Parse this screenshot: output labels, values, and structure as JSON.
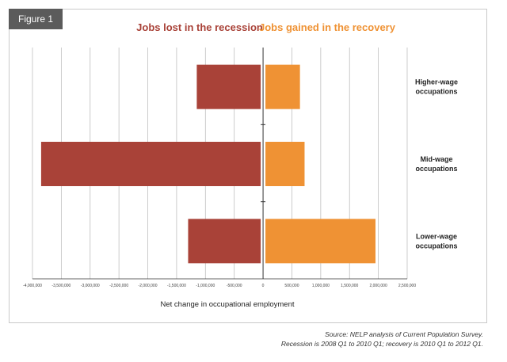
{
  "figure_tab": "Figure 1",
  "colors": {
    "loss": "#a94238",
    "gain": "#ef9234",
    "grid": "#bfbfbf",
    "axis": "#333333"
  },
  "chart_data": {
    "type": "bar",
    "orientation": "horizontal",
    "title": "",
    "categories": [
      "Higher-wage occupations",
      "Mid-wage occupations",
      "Lower-wage occupations"
    ],
    "category_lines": [
      [
        "Higher-wage",
        "occupations"
      ],
      [
        "Mid-wage",
        "occupations"
      ],
      [
        "Lower-wage",
        "occupations"
      ]
    ],
    "series": [
      {
        "name": "Jobs lost in the recession",
        "color": "#a94238",
        "values": [
          -1150000,
          -3850000,
          -1300000
        ]
      },
      {
        "name": "Jobs gained in the recovery",
        "color": "#ef9234",
        "values": [
          640000,
          720000,
          1950000
        ]
      }
    ],
    "xlabel": "Net change in occupational employment",
    "xlim": [
      -4000000,
      2500000
    ],
    "xticks": [
      -4000000,
      -3500000,
      -3000000,
      -2500000,
      -2000000,
      -1500000,
      -1000000,
      -500000,
      0,
      500000,
      1000000,
      1500000,
      2000000,
      2500000
    ],
    "xtick_labels": [
      "-4,000,000",
      "-3,500,000",
      "-3,000,000",
      "-2,500,000",
      "-2,000,000",
      "-1,500,000",
      "-1,000,000",
      "-500,000",
      "0",
      "500,000",
      "1,000,000",
      "1,500,000",
      "2,000,000",
      "2,500,000"
    ],
    "grid": "vertical",
    "legend_position": "top"
  },
  "source": {
    "line1": "Source: NELP analysis of Current Population Survey.",
    "line2": "Recession is 2008 Q1 to 2010 Q1; recovery is 2010 Q1 to 2012 Q1."
  }
}
